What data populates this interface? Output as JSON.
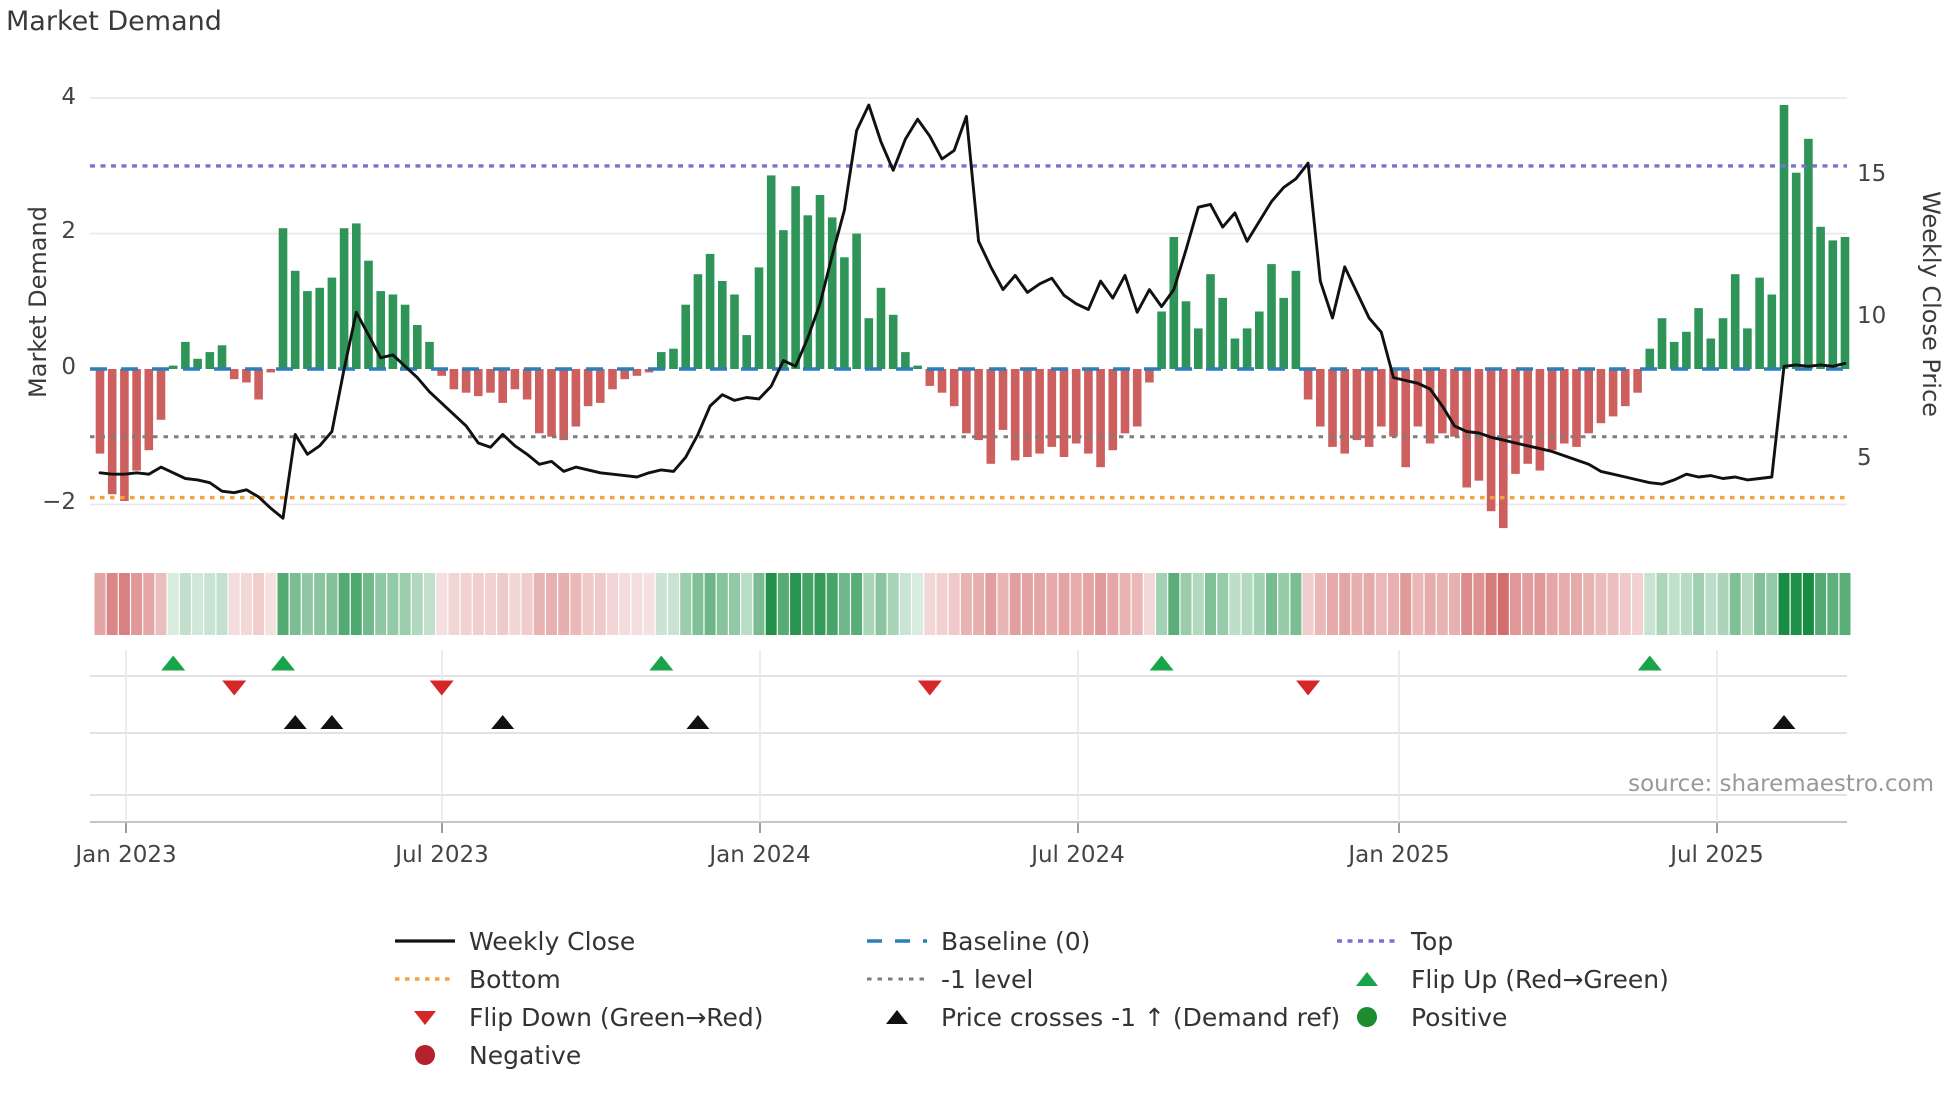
{
  "title": "Market Demand",
  "source": "source: sharemaestro.com",
  "axes": {
    "left": {
      "label": "Market Demand",
      "ticks": [
        "4",
        "2",
        "0",
        "−2"
      ]
    },
    "right": {
      "label": "Weekly Close Price",
      "ticks": [
        "15",
        "10",
        "5"
      ]
    },
    "x": {
      "ticks": [
        "Jan 2023",
        "Jul 2023",
        "Jan 2024",
        "Jul 2024",
        "Jan 2025",
        "Jul 2025"
      ]
    }
  },
  "colors": {
    "bar_positive": "#2e9458",
    "bar_negative": "#cd5f5f",
    "price_line": "#111111",
    "baseline": "#2c7fb8",
    "top_line": "#7d70d2",
    "minus1_line": "#7d7d7d",
    "bottom_line": "#f3a33b",
    "flip_up": "#18a449",
    "flip_down": "#d62728",
    "cross_marker": "#111111",
    "positive_dot": "#1f8b2f",
    "negative_dot": "#b3222d",
    "grid": "#e8e8ec",
    "panel_grid": "#d9d9de",
    "heat_green": "24,140,66",
    "heat_red": "202,78,78"
  },
  "legend": {
    "columns": [
      [
        {
          "type": "line_black",
          "label": "Weekly Close"
        },
        {
          "type": "dotted_orange",
          "label": "Bottom"
        },
        {
          "type": "tri_down_red",
          "label": "Flip Down (Green→Red)"
        },
        {
          "type": "circle_darkred",
          "label": "Negative"
        }
      ],
      [
        {
          "type": "dash_blue",
          "label": "Baseline (0)"
        },
        {
          "type": "dotted_gray",
          "label": "-1 level"
        },
        {
          "type": "tri_up_black",
          "label": "Price crosses -1 ↑ (Demand ref)"
        }
      ],
      [
        {
          "type": "dotted_purple",
          "label": "Top"
        },
        {
          "type": "tri_up_green",
          "label": "Flip Up (Red→Green)"
        },
        {
          "type": "circle_green",
          "label": "Positive"
        }
      ]
    ]
  },
  "chart_data": {
    "type": "bar+line",
    "title": "Market Demand",
    "x_unit": "weeks from Jan 2023 to Sep 2025",
    "ylabel_left": "Market Demand",
    "ylabel_right": "Weekly Close Price",
    "demand_ylim": [
      -2.67,
      4.34
    ],
    "price_ylim": [
      1.8,
      19.2
    ],
    "ref_lines": {
      "top": 3.0,
      "baseline": 0.0,
      "minus1": -1.0,
      "bottom": -1.9
    },
    "demand": [
      -1.25,
      -1.85,
      -1.95,
      -1.5,
      -1.2,
      -0.75,
      0.05,
      0.4,
      0.15,
      0.25,
      0.35,
      -0.15,
      -0.2,
      -0.45,
      -0.05,
      2.08,
      1.45,
      1.15,
      1.2,
      1.35,
      2.08,
      2.15,
      1.6,
      1.15,
      1.1,
      0.95,
      0.65,
      0.4,
      -0.1,
      -0.3,
      -0.35,
      -0.4,
      -0.35,
      -0.5,
      -0.3,
      -0.45,
      -0.95,
      -1.0,
      -1.05,
      -0.85,
      -0.55,
      -0.5,
      -0.3,
      -0.15,
      -0.1,
      -0.05,
      0.25,
      0.3,
      0.95,
      1.4,
      1.7,
      1.3,
      1.1,
      0.5,
      1.5,
      2.86,
      2.05,
      2.7,
      2.27,
      2.57,
      2.24,
      1.65,
      2.0,
      0.75,
      1.2,
      0.8,
      0.25,
      0.05,
      -0.25,
      -0.35,
      -0.55,
      -0.95,
      -1.05,
      -1.4,
      -0.9,
      -1.35,
      -1.3,
      -1.25,
      -1.15,
      -1.3,
      -1.1,
      -1.25,
      -1.45,
      -1.2,
      -0.95,
      -0.85,
      -0.2,
      0.85,
      1.95,
      1.0,
      0.6,
      1.4,
      1.05,
      0.45,
      0.6,
      0.85,
      1.55,
      1.05,
      1.45,
      -0.45,
      -0.85,
      -1.15,
      -1.25,
      -1.05,
      -1.15,
      -0.85,
      -1.0,
      -1.45,
      -0.85,
      -1.1,
      -0.95,
      -1.0,
      -1.75,
      -1.65,
      -2.1,
      -2.35,
      -1.55,
      -1.4,
      -1.5,
      -1.2,
      -1.1,
      -1.15,
      -0.95,
      -0.8,
      -0.7,
      -0.55,
      -0.35,
      0.3,
      0.75,
      0.4,
      0.55,
      0.9,
      0.45,
      0.75,
      1.4,
      0.6,
      1.35,
      1.1,
      3.9,
      2.9,
      3.4,
      2.1,
      1.9,
      1.95
    ],
    "price": [
      4.55,
      4.5,
      4.5,
      4.55,
      4.5,
      4.75,
      4.55,
      4.35,
      4.3,
      4.2,
      3.9,
      3.85,
      3.95,
      3.7,
      3.3,
      2.95,
      5.9,
      5.2,
      5.5,
      6.0,
      8.2,
      10.2,
      9.4,
      8.6,
      8.7,
      8.3,
      7.9,
      7.4,
      7.0,
      6.6,
      6.2,
      5.6,
      5.45,
      5.9,
      5.5,
      5.2,
      4.85,
      4.95,
      4.6,
      4.75,
      4.65,
      4.55,
      4.5,
      4.45,
      4.4,
      4.55,
      4.65,
      4.6,
      5.1,
      5.9,
      6.9,
      7.3,
      7.1,
      7.2,
      7.15,
      7.6,
      8.5,
      8.3,
      9.3,
      10.5,
      12.2,
      13.8,
      16.6,
      17.5,
      16.2,
      15.2,
      16.3,
      17.0,
      16.4,
      15.6,
      15.9,
      17.1,
      12.7,
      11.8,
      11.0,
      11.5,
      10.9,
      11.2,
      11.4,
      10.8,
      10.5,
      10.3,
      11.3,
      10.7,
      11.5,
      10.2,
      11.0,
      10.4,
      11.0,
      12.4,
      13.9,
      14.0,
      13.2,
      13.7,
      12.7,
      13.4,
      14.1,
      14.6,
      14.9,
      15.45,
      11.3,
      10.0,
      11.8,
      10.9,
      10.0,
      9.5,
      7.9,
      7.8,
      7.7,
      7.5,
      6.9,
      6.2,
      6.0,
      5.95,
      5.8,
      5.7,
      5.6,
      5.5,
      5.4,
      5.3,
      5.15,
      5.0,
      4.85,
      4.6,
      4.5,
      4.4,
      4.3,
      4.2,
      4.15,
      4.3,
      4.5,
      4.4,
      4.45,
      4.35,
      4.4,
      4.3,
      4.35,
      4.4,
      8.3,
      8.35,
      8.3,
      8.35,
      8.3,
      8.4
    ],
    "markers": {
      "flip_up_weeks": [
        6,
        15,
        46,
        87,
        127
      ],
      "flip_down_weeks": [
        11,
        28,
        68,
        99
      ],
      "price_cross_weeks": [
        16,
        19,
        33,
        49,
        138
      ]
    },
    "legend_position": "bottom",
    "grid": "horizontal-light"
  }
}
